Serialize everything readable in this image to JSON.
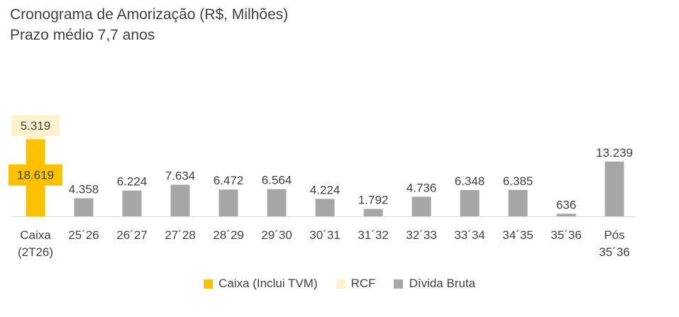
{
  "title": "Cronograma de Amorização (R$, Milhões)",
  "subtitle": "Prazo médio 7,7 anos",
  "colors": {
    "caixa": "#FFC000",
    "rcf": "#FFF2CC",
    "divida": "#A6A6A6",
    "axis": "#D9D9D9"
  },
  "legend": {
    "caixa": "Caixa (Inclui TVM)",
    "rcf": "RCF",
    "divida": "Dívida Bruta"
  },
  "chart_data": {
    "type": "bar",
    "stacked": true,
    "title": "Cronograma de Amorização (R$, Milhões)",
    "subtitle": "Prazo médio 7,7 anos",
    "categories": [
      [
        "Caixa",
        "(2T26)"
      ],
      [
        "25´26"
      ],
      [
        "26´27"
      ],
      [
        "27´28"
      ],
      [
        "28´29"
      ],
      [
        "29´30"
      ],
      [
        "30´31"
      ],
      [
        "31´32"
      ],
      [
        "32´33"
      ],
      [
        "33´34"
      ],
      [
        "34´35"
      ],
      [
        "35´36"
      ],
      [
        "Pós",
        "35´36"
      ]
    ],
    "series": [
      {
        "name": "Caixa (Inclui TVM)",
        "color": "#FFC000",
        "values": [
          18619,
          null,
          null,
          null,
          null,
          null,
          null,
          null,
          null,
          null,
          null,
          null,
          null
        ],
        "labels": [
          "18.619",
          "",
          "",
          "",
          "",
          "",
          "",
          "",
          "",
          "",
          "",
          "",
          ""
        ]
      },
      {
        "name": "RCF",
        "color": "#FFF2CC",
        "values": [
          5319,
          null,
          null,
          null,
          null,
          null,
          null,
          null,
          null,
          null,
          null,
          null,
          null
        ],
        "labels": [
          "5.319",
          "",
          "",
          "",
          "",
          "",
          "",
          "",
          "",
          "",
          "",
          "",
          ""
        ]
      },
      {
        "name": "Dívida Bruta",
        "color": "#A6A6A6",
        "values": [
          null,
          4358,
          6224,
          7634,
          6472,
          6564,
          4224,
          1792,
          4736,
          6348,
          6385,
          636,
          13239
        ],
        "labels": [
          "",
          "4.358",
          "6.224",
          "7.634",
          "6.472",
          "6.564",
          "4.224",
          "1.792",
          "4.736",
          "6.348",
          "6.385",
          "636",
          "13.239"
        ]
      }
    ],
    "grid": false,
    "legend_position": "bottom"
  }
}
